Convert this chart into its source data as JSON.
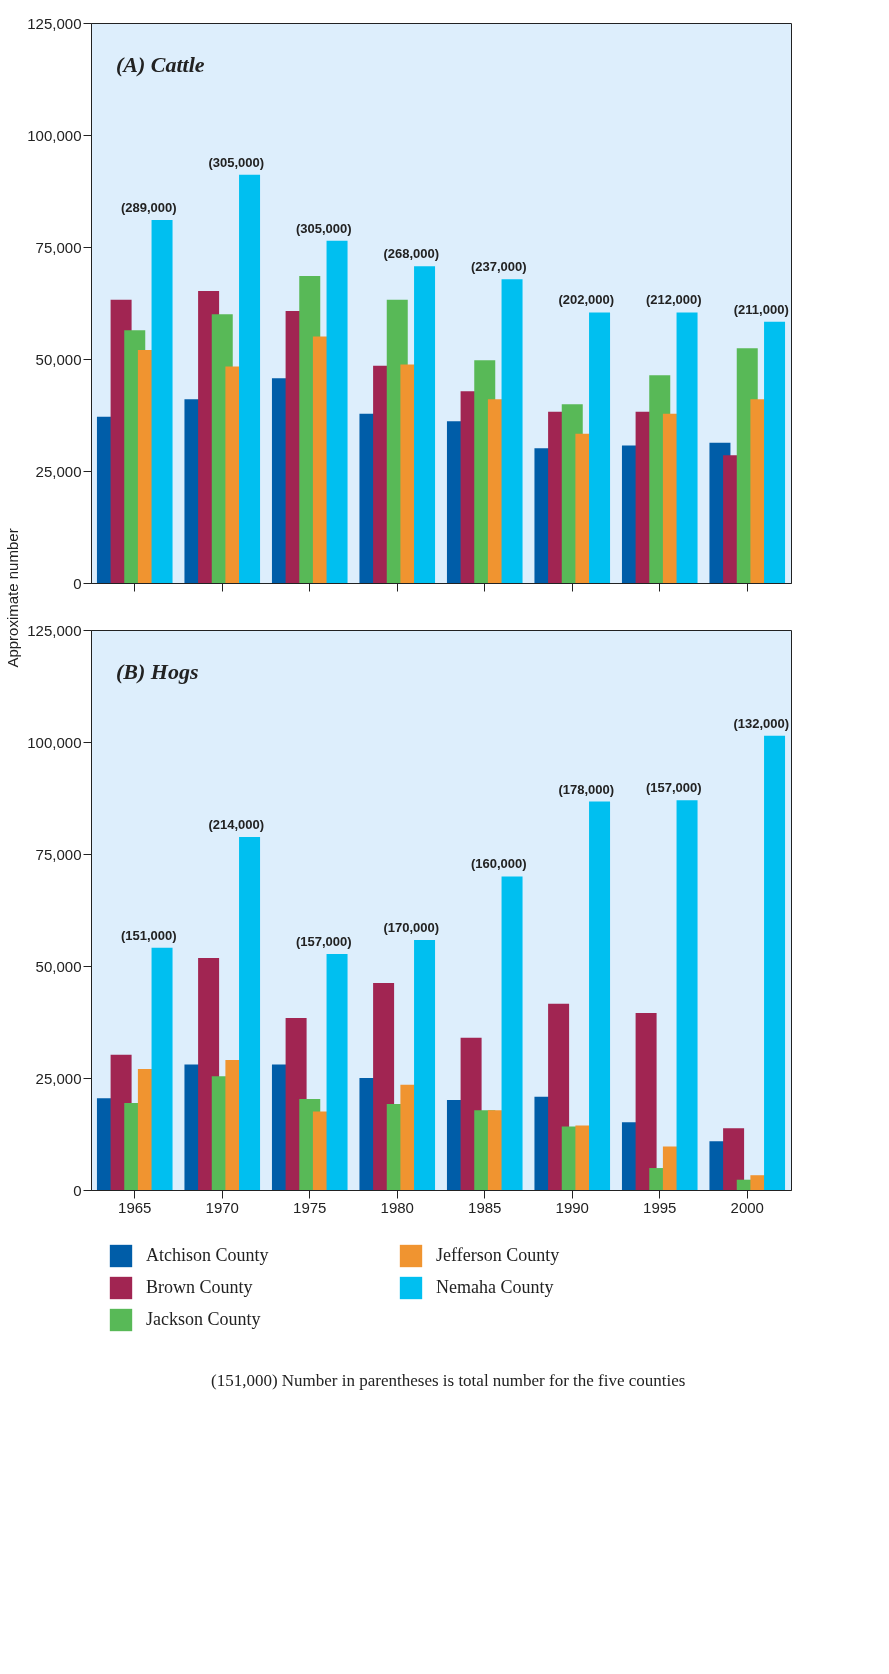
{
  "chart_data": [
    {
      "type": "bar",
      "title": "(A) Cattle",
      "ylabel": "Approximate number",
      "tick_labels": "y",
      "categories": [
        "1965",
        "1970",
        "1975",
        "1980",
        "1985",
        "1990",
        "1995",
        "2000"
      ],
      "ylim": [
        0,
        125000
      ],
      "yticks": [
        0,
        {
          "value": 25000,
          "label": "25,000"
        },
        {
          "value": 50000,
          "label": "50,000"
        },
        {
          "value": 75000,
          "label": "75,000"
        },
        {
          "value": 100000,
          "label": "100,000"
        },
        {
          "value": 125000,
          "label": "125,000"
        }
      ],
      "series": [
        {
          "color": "#005da8",
          "values": [
            37100,
            41000,
            45700,
            37800,
            36100,
            30100,
            30700,
            31300
          ]
        },
        {
          "color": "#a12552",
          "values": [
            63200,
            65200,
            60700,
            48500,
            42800,
            38200,
            38200,
            28500
          ]
        },
        {
          "color": "#58b957",
          "values": [
            56400,
            60000,
            68500,
            63200,
            49700,
            39900,
            46400,
            52400
          ]
        },
        {
          "color": "#f09430",
          "values": [
            52000,
            48300,
            55000,
            48800,
            41000,
            33300,
            37800,
            41000
          ]
        },
        {
          "color": "#00bff0",
          "values": [
            81000,
            91100,
            76400,
            70700,
            67800,
            60400,
            60400,
            58300
          ]
        }
      ],
      "annotations": [
        "(289,000)",
        "(305,000)",
        "(305,000)",
        "(268,000)",
        "(237,000)",
        "(202,000)",
        "(212,000)",
        "(211,000)"
      ]
    },
    {
      "type": "bar",
      "title": "(B) Hogs",
      "legend": "bottom",
      "categories": [
        "1965",
        "1970",
        "1975",
        "1980",
        "1985",
        "1990",
        "1995",
        "2000"
      ],
      "ylim": [
        0,
        125000
      ],
      "yticks": [
        0,
        {
          "value": 25000,
          "label": "25,000"
        },
        {
          "value": 50000,
          "label": "50,000"
        },
        {
          "value": 75000,
          "label": "75,000"
        },
        {
          "value": 100000,
          "label": "100,000"
        },
        {
          "value": 125000,
          "label": "125,000"
        }
      ],
      "series": [
        {
          "name": "Atchison County",
          "color": "#005da8",
          "values": [
            20500,
            28000,
            28000,
            25000,
            20100,
            20800,
            15100,
            10900
          ]
        },
        {
          "name": "Brown County",
          "color": "#a12552",
          "values": [
            30200,
            51800,
            38400,
            46200,
            34000,
            41600,
            39500,
            13800
          ]
        },
        {
          "name": "Jackson County",
          "color": "#58b957",
          "values": [
            19400,
            25400,
            20300,
            19200,
            17800,
            14200,
            4900,
            2300
          ]
        },
        {
          "name": "Jefferson County",
          "color": "#f09430",
          "values": [
            27000,
            29000,
            17500,
            23500,
            17800,
            14400,
            9700,
            3300
          ]
        },
        {
          "name": "Nemaha County",
          "color": "#00bff0",
          "values": [
            54100,
            78800,
            52700,
            55800,
            70000,
            86700,
            87000,
            101400
          ]
        }
      ],
      "annotations": [
        "(151,000)",
        "(214,000)",
        "(157,000)",
        "(170,000)",
        "(160,000)",
        "(178,000)",
        "(157,000)",
        "(132,000)",
        "(151,000) Number in parentheses is total number for the five counties"
      ]
    }
  ]
}
